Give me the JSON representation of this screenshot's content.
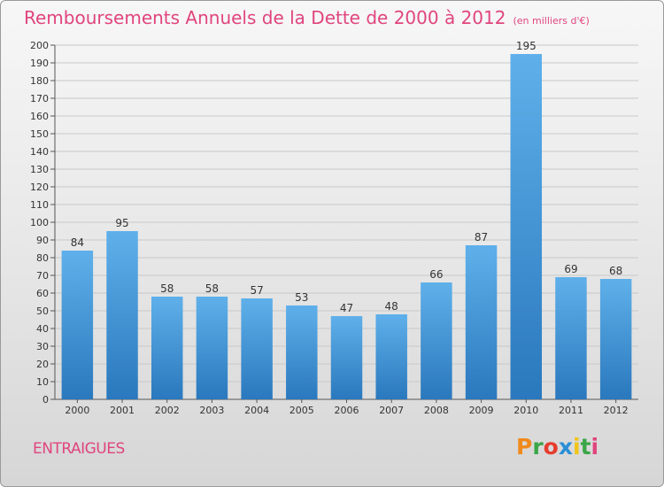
{
  "header": {
    "title": "Remboursements Annuels de la Dette de 2000 à 2012",
    "subtitle": "(en milliers d'€)"
  },
  "footer": {
    "place": "ENTRAIGUES",
    "logo_text": "Proxiti",
    "logo_colors": [
      "#f08a1c",
      "#3aa648",
      "#e63c2e",
      "#2a8fd6",
      "#f0c419",
      "#3aa648",
      "#e0457e"
    ]
  },
  "colors": {
    "title": "#e0457e",
    "bar_top": "#5fb0ea",
    "bar_bottom": "#2a78bd",
    "grid": "#c8c8c8"
  },
  "chart_data": {
    "type": "bar",
    "categories": [
      "2000",
      "2001",
      "2002",
      "2003",
      "2004",
      "2005",
      "2006",
      "2007",
      "2008",
      "2009",
      "2010",
      "2011",
      "2012"
    ],
    "values": [
      84,
      95,
      58,
      58,
      57,
      53,
      47,
      48,
      66,
      87,
      195,
      69,
      68
    ],
    "ylim": [
      0,
      200
    ],
    "yticks": [
      0,
      10,
      20,
      30,
      40,
      50,
      60,
      70,
      80,
      90,
      100,
      110,
      120,
      130,
      140,
      150,
      160,
      170,
      180,
      190,
      200
    ],
    "grid": true
  }
}
